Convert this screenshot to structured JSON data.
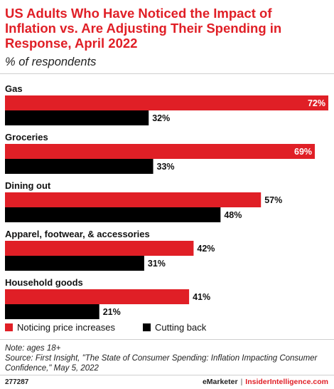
{
  "title": "US Adults Who Have Noticed the Impact of Inflation vs. Are Adjusting Their Spending in Response, April 2022",
  "subtitle": "% of respondents",
  "colors": {
    "noticing": "#e01f26",
    "cutting": "#000000",
    "accent": "#e01f26"
  },
  "chart_data": {
    "type": "bar",
    "orientation": "horizontal",
    "categories": [
      "Gas",
      "Groceries",
      "Dining out",
      "Apparel, footwear, & accessories",
      "Household goods"
    ],
    "series": [
      {
        "name": "Noticing price increases",
        "values": [
          72,
          69,
          57,
          42,
          41
        ]
      },
      {
        "name": "Cutting back",
        "values": [
          32,
          33,
          48,
          31,
          21
        ]
      }
    ],
    "value_format": "%",
    "xlim": [
      0,
      72
    ],
    "legend_position": "bottom-left",
    "grid": false
  },
  "legend": {
    "items": [
      "Noticing price increases",
      "Cutting back"
    ]
  },
  "note": "Note: ages 18+",
  "source": "Source: First Insight, \"The State of Consumer Spending: Inflation Impacting Consumer Confidence,\" May 5, 2022",
  "footer": {
    "id": "277287",
    "brand_left": "eMarketer",
    "separator": "|",
    "brand_right": "InsiderIntelligence.com"
  }
}
